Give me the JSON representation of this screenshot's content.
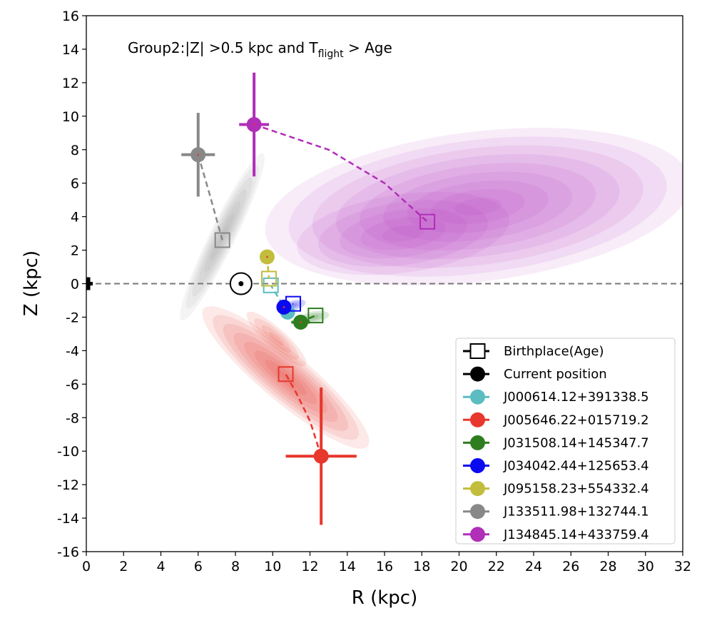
{
  "chart_data": {
    "type": "scatter",
    "title_main": "Group2:|Z| >0.5 kpc and T",
    "title_sub": "flight",
    "title_tail": " > Age",
    "xlabel": "R (kpc)",
    "ylabel": "Z (kpc)",
    "xlim": [
      0,
      32
    ],
    "ylim": [
      -16,
      16
    ],
    "xticks": [
      0,
      2,
      4,
      6,
      8,
      10,
      12,
      14,
      16,
      18,
      20,
      22,
      24,
      26,
      28,
      30,
      32
    ],
    "yticks": [
      -16,
      -14,
      -12,
      -10,
      -8,
      -6,
      -4,
      -2,
      0,
      2,
      4,
      6,
      8,
      10,
      12,
      14,
      16
    ],
    "grid": false,
    "legend_position": "lower-right",
    "reference_line_y": 0,
    "galactic_center_marker": [
      0,
      0
    ],
    "sun_position": [
      8.3,
      0
    ],
    "legend": {
      "birthplace_label": "Birthplace(Age)",
      "current_label": "Current position"
    },
    "series": [
      {
        "name": "J000614.12+391338.5",
        "color": "#5bbcc2",
        "current": [
          10.8,
          -1.7
        ],
        "current_err": [
          0.3,
          0.2
        ],
        "birth": [
          9.9,
          -0.1
        ],
        "path": [
          [
            10.8,
            -1.7
          ],
          [
            10.4,
            -1.0
          ],
          [
            9.9,
            -0.1
          ]
        ]
      },
      {
        "name": "J005646.22+015719.2",
        "color": "#e8372c",
        "current": [
          12.6,
          -10.3
        ],
        "current_err": [
          1.9,
          4.1
        ],
        "birth": [
          10.7,
          -5.4
        ],
        "path": [
          [
            12.6,
            -10.3
          ],
          [
            12.0,
            -8.2
          ],
          [
            11.3,
            -6.6
          ],
          [
            10.7,
            -5.4
          ]
        ]
      },
      {
        "name": "J031508.14+145347.7",
        "color": "#2e7d1f",
        "current": [
          11.5,
          -2.3
        ],
        "current_err": [
          0.5,
          0.3
        ],
        "birth": [
          12.3,
          -1.9
        ],
        "path": [
          [
            11.5,
            -2.3
          ],
          [
            12.3,
            -1.9
          ]
        ]
      },
      {
        "name": "J034042.44+125653.4",
        "color": "#0a0af0",
        "current": [
          10.6,
          -1.4
        ],
        "current_err": [
          0.3,
          0.3
        ],
        "birth": [
          11.1,
          -1.2
        ],
        "path": [
          [
            10.6,
            -1.4
          ],
          [
            11.1,
            -1.2
          ]
        ]
      },
      {
        "name": "J095158.23+554332.4",
        "color": "#c2bd3c",
        "current": [
          9.7,
          1.6
        ],
        "current_err": [
          0.2,
          0.3
        ],
        "birth": [
          9.8,
          0.3
        ],
        "path": [
          [
            9.7,
            1.6
          ],
          [
            9.8,
            0.3
          ]
        ]
      },
      {
        "name": "J133511.98+132744.1",
        "color": "#888888",
        "current": [
          6.0,
          7.7
        ],
        "current_err": [
          0.9,
          2.5
        ],
        "birth": [
          7.3,
          2.6
        ],
        "path": [
          [
            6.0,
            7.7
          ],
          [
            6.6,
            5.4
          ],
          [
            7.3,
            2.6
          ]
        ]
      },
      {
        "name": "J134845.14+433759.4",
        "color": "#b02eb8",
        "current": [
          9.0,
          9.5
        ],
        "current_err": [
          0.8,
          3.1
        ],
        "birth": [
          18.3,
          3.7
        ],
        "path": [
          [
            9.0,
            9.5
          ],
          [
            13.0,
            8.0
          ],
          [
            16.0,
            6.0
          ],
          [
            18.3,
            3.7
          ]
        ]
      }
    ]
  }
}
